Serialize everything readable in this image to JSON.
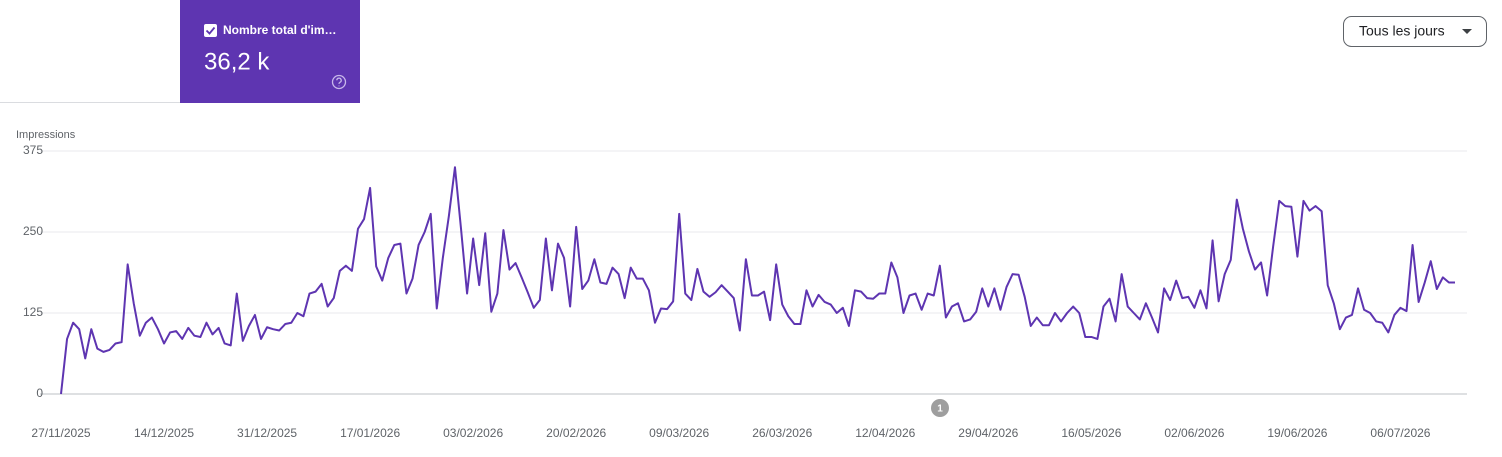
{
  "metric": {
    "label": "Nombre total d'im…",
    "value": "36,2 k"
  },
  "dropdown": "Tous les jours",
  "annotation": "1",
  "chart_data": {
    "type": "line",
    "y_label": "Impressions",
    "color": "#5e35b1",
    "grid": true,
    "ylim": [
      0,
      375
    ],
    "yticks": [
      0,
      125,
      250,
      375
    ],
    "categories": [
      "27/11/2025",
      null,
      null,
      null,
      null,
      null,
      null,
      null,
      null,
      null,
      null,
      null,
      null,
      null,
      null,
      null,
      null,
      "14/12/2025",
      null,
      null,
      null,
      null,
      null,
      null,
      null,
      null,
      null,
      null,
      null,
      null,
      null,
      null,
      null,
      null,
      "31/12/2025",
      null,
      null,
      null,
      null,
      null,
      null,
      null,
      null,
      null,
      null,
      null,
      null,
      null,
      null,
      null,
      null,
      "17/01/2026",
      null,
      null,
      null,
      null,
      null,
      null,
      null,
      null,
      null,
      null,
      null,
      null,
      null,
      null,
      null,
      null,
      "03/02/2026",
      null,
      null,
      null,
      null,
      null,
      null,
      null,
      null,
      null,
      null,
      null,
      null,
      null,
      null,
      null,
      null,
      "20/02/2026",
      null,
      null,
      null,
      null,
      null,
      null,
      null,
      null,
      null,
      null,
      null,
      null,
      null,
      null,
      null,
      null,
      "09/03/2026",
      null,
      null,
      null,
      null,
      null,
      null,
      null,
      null,
      null,
      null,
      null,
      null,
      null,
      null,
      null,
      null,
      "26/03/2026",
      null,
      null,
      null,
      null,
      null,
      null,
      null,
      null,
      null,
      null,
      null,
      null,
      null,
      null,
      null,
      null,
      "12/04/2026",
      null,
      null,
      null,
      null,
      null,
      null,
      null,
      null,
      null,
      null,
      null,
      null,
      null,
      null,
      null,
      null,
      "29/04/2026",
      null,
      null,
      null,
      null,
      null,
      null,
      null,
      null,
      null,
      null,
      null,
      null,
      null,
      null,
      null,
      null,
      "16/05/2026",
      null,
      null,
      null,
      null,
      null,
      null,
      null,
      null,
      null,
      null,
      null,
      null,
      null,
      null,
      null,
      null,
      "02/06/2026",
      null,
      null,
      null,
      null,
      null,
      null,
      null,
      null,
      null,
      null,
      null,
      null,
      null,
      null,
      null,
      null,
      "19/06/2026",
      null,
      null,
      null,
      null,
      null,
      null,
      null,
      null,
      null,
      null,
      null,
      null,
      null,
      null,
      null,
      null,
      "06/07/2026",
      null,
      null,
      null,
      null,
      null,
      null,
      null,
      null,
      null
    ],
    "values": [
      0,
      85,
      110,
      100,
      55,
      100,
      70,
      65,
      68,
      78,
      80,
      200,
      140,
      90,
      110,
      118,
      100,
      78,
      95,
      97,
      85,
      102,
      90,
      88,
      110,
      92,
      102,
      78,
      75,
      155,
      82,
      105,
      122,
      85,
      103,
      100,
      98,
      108,
      110,
      125,
      120,
      155,
      158,
      170,
      135,
      148,
      190,
      198,
      190,
      255,
      270,
      318,
      197,
      175,
      210,
      230,
      232,
      155,
      178,
      230,
      250,
      278,
      132,
      210,
      275,
      350,
      255,
      155,
      240,
      168,
      248,
      127,
      155,
      253,
      192,
      202,
      180,
      157,
      133,
      145,
      240,
      160,
      232,
      210,
      135,
      258,
      162,
      175,
      208,
      172,
      170,
      195,
      185,
      148,
      195,
      178,
      178,
      160,
      110,
      132,
      131,
      143,
      278,
      155,
      145,
      193,
      158,
      150,
      157,
      168,
      158,
      148,
      98,
      208,
      152,
      152,
      158,
      114,
      200,
      138,
      120,
      108,
      108,
      160,
      135,
      153,
      142,
      138,
      125,
      133,
      105,
      160,
      158,
      148,
      147,
      155,
      155,
      203,
      180,
      125,
      152,
      155,
      130,
      155,
      152,
      198,
      118,
      135,
      140,
      112,
      115,
      127,
      163,
      135,
      163,
      130,
      165,
      185,
      184,
      150,
      105,
      118,
      106,
      106,
      125,
      112,
      125,
      135,
      125,
      88,
      88,
      85,
      135,
      147,
      112,
      185,
      135,
      125,
      115,
      140,
      118,
      95,
      163,
      145,
      175,
      148,
      150,
      133,
      160,
      132,
      237,
      143,
      185,
      207,
      300,
      255,
      220,
      192,
      203,
      152,
      228,
      298,
      290,
      289,
      212,
      298,
      283,
      290,
      282,
      168,
      140,
      100,
      118,
      122,
      163,
      130,
      125,
      112,
      110,
      95,
      122,
      133,
      128,
      230,
      142,
      172,
      205,
      162,
      180,
      172,
      172
    ]
  }
}
